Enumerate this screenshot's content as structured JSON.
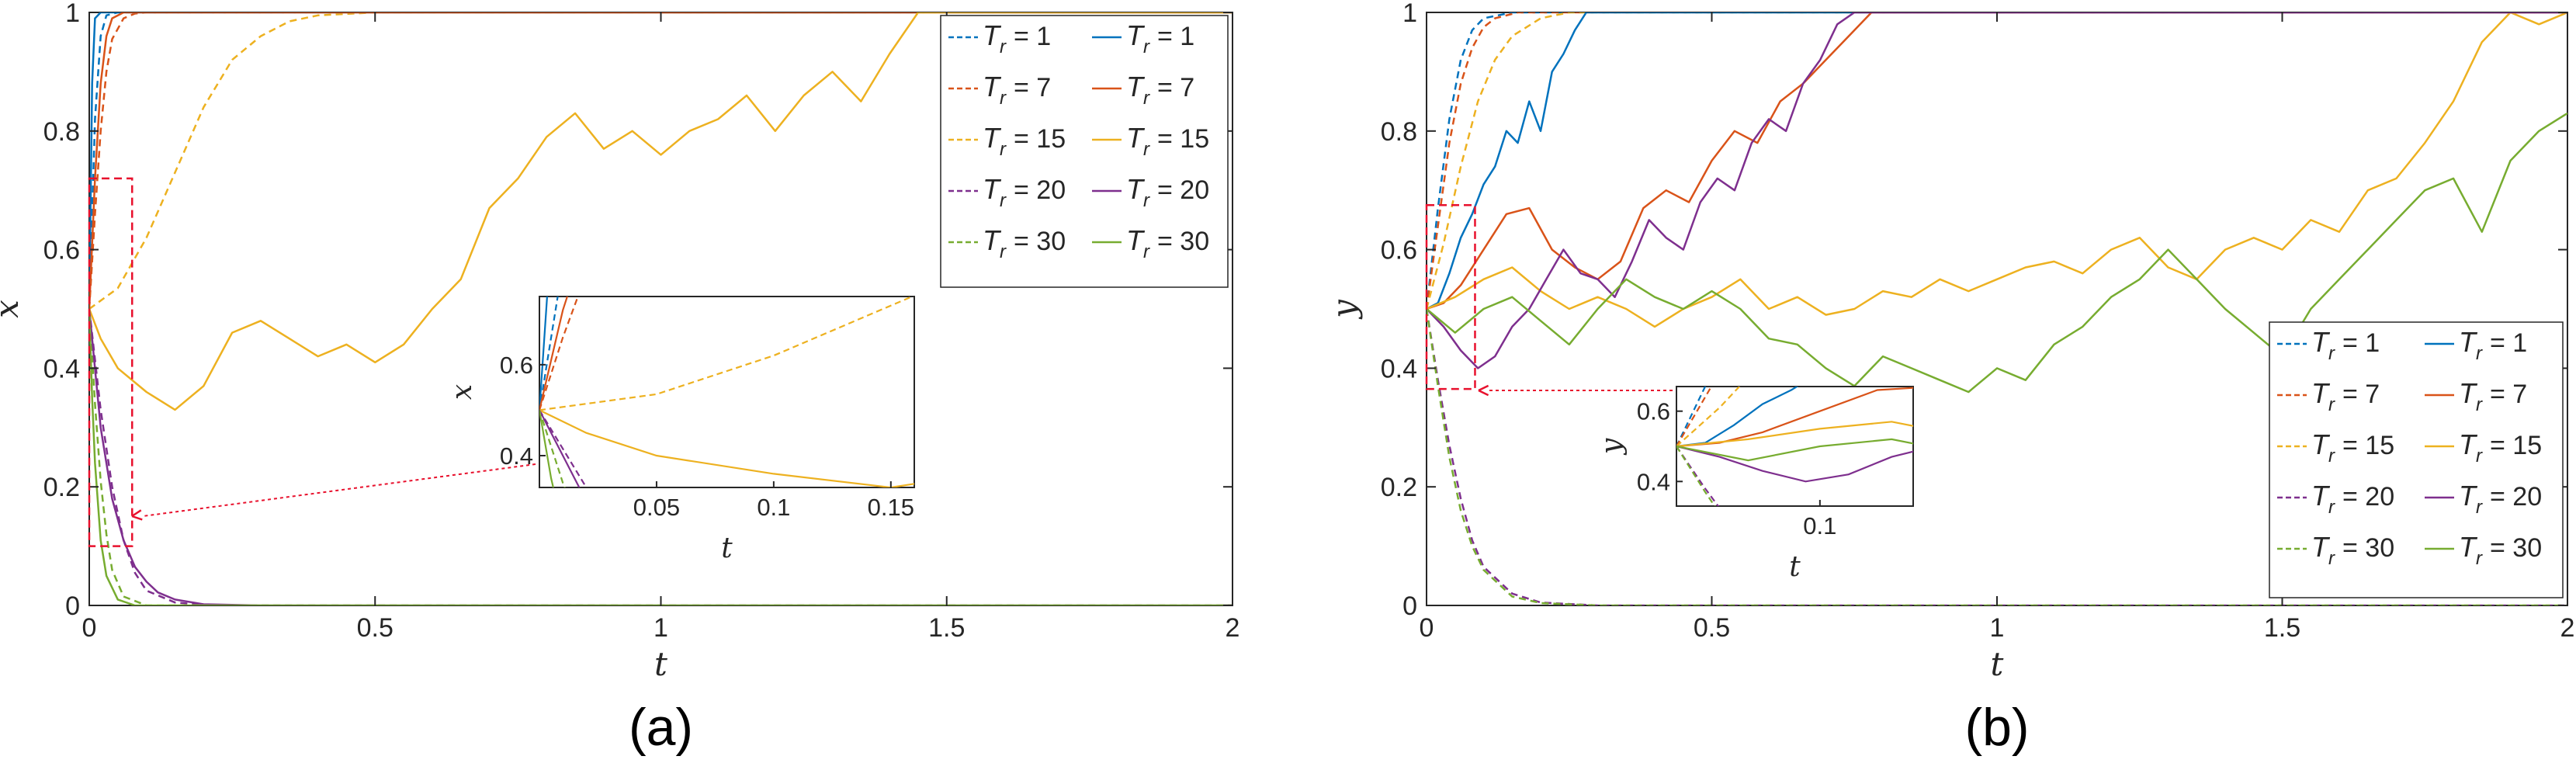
{
  "colors": {
    "1": "#0072BD",
    "7": "#D95319",
    "15": "#EDB120",
    "20": "#7E2F8E",
    "30": "#77AC30",
    "marker": "#E8112D",
    "axis": "#262626"
  },
  "chart_data": [
    {
      "type": "line",
      "panel_label": "(a)",
      "xlabel": "t",
      "ylabel": "x",
      "xlim": [
        0,
        2
      ],
      "ylim": [
        0,
        1
      ],
      "xticks": [
        "0",
        "0.5",
        "1",
        "1.5",
        "2"
      ],
      "yticks": [
        "0",
        "0.2",
        "0.4",
        "0.6",
        "0.8",
        "1"
      ],
      "legend": {
        "position": "top-right",
        "T_symbol": "T",
        "T_sub": "r",
        "entries": [
          {
            "style": "dashed",
            "Tr": "1",
            "label": "= 1"
          },
          {
            "style": "solid",
            "Tr": "1",
            "label": "= 1"
          },
          {
            "style": "dashed",
            "Tr": "7",
            "label": "= 7"
          },
          {
            "style": "solid",
            "Tr": "7",
            "label": "= 7"
          },
          {
            "style": "dashed",
            "Tr": "15",
            "label": "= 15"
          },
          {
            "style": "solid",
            "Tr": "15",
            "label": "= 15"
          },
          {
            "style": "dashed",
            "Tr": "20",
            "label": "= 20"
          },
          {
            "style": "solid",
            "Tr": "20",
            "label": "= 20"
          },
          {
            "style": "dashed",
            "Tr": "30",
            "label": "= 30"
          },
          {
            "style": "solid",
            "Tr": "30",
            "label": "= 30"
          }
        ]
      },
      "series": [
        {
          "Tr": "1",
          "style": "dashed",
          "x": [
            0,
            0.01,
            0.02,
            0.03,
            0.05,
            2
          ],
          "y": [
            0.5,
            0.82,
            0.96,
            0.995,
            1,
            1
          ]
        },
        {
          "Tr": "7",
          "style": "dashed",
          "x": [
            0,
            0.01,
            0.02,
            0.03,
            0.04,
            0.06,
            0.08,
            0.1,
            2
          ],
          "y": [
            0.5,
            0.66,
            0.8,
            0.9,
            0.955,
            0.99,
            0.998,
            1,
            1
          ]
        },
        {
          "Tr": "15",
          "style": "dashed",
          "x": [
            0,
            0.05,
            0.1,
            0.15,
            0.2,
            0.25,
            0.3,
            0.35,
            0.4,
            0.5,
            2
          ],
          "y": [
            0.5,
            0.535,
            0.62,
            0.73,
            0.84,
            0.92,
            0.96,
            0.985,
            0.995,
            1,
            1
          ]
        },
        {
          "Tr": "20",
          "style": "dashed",
          "x": [
            0,
            0.02,
            0.04,
            0.06,
            0.08,
            0.1,
            0.15,
            0.2,
            0.3,
            2
          ],
          "y": [
            0.5,
            0.33,
            0.2,
            0.11,
            0.055,
            0.025,
            0.005,
            0.001,
            0,
            0
          ]
        },
        {
          "Tr": "30",
          "style": "dashed",
          "x": [
            0,
            0.01,
            0.02,
            0.03,
            0.04,
            0.06,
            0.1,
            2
          ],
          "y": [
            0.5,
            0.34,
            0.21,
            0.12,
            0.06,
            0.015,
            0,
            0
          ]
        },
        {
          "Tr": "1",
          "style": "solid",
          "x": [
            0,
            0.005,
            0.01,
            0.02,
            2
          ],
          "y": [
            0.5,
            0.88,
            0.99,
            1,
            1
          ]
        },
        {
          "Tr": "7",
          "style": "solid",
          "x": [
            0,
            0.01,
            0.02,
            0.03,
            0.04,
            0.06,
            2
          ],
          "y": [
            0.5,
            0.72,
            0.88,
            0.96,
            0.99,
            1,
            1
          ]
        },
        {
          "Tr": "15",
          "style": "solid",
          "x": [
            0,
            0.02,
            0.05,
            0.1,
            0.15,
            0.2,
            0.25,
            0.3,
            0.35,
            0.4,
            0.45,
            0.5,
            0.55,
            0.6,
            0.65,
            0.7,
            0.75,
            0.8,
            0.85,
            0.9,
            0.95,
            1.0,
            1.05,
            1.1,
            1.15,
            1.2,
            1.25,
            1.3,
            1.35,
            1.4,
            1.45,
            1.5,
            1.6,
            1.7,
            1.8,
            1.9,
            2.0
          ],
          "y": [
            0.5,
            0.45,
            0.4,
            0.36,
            0.33,
            0.37,
            0.46,
            0.48,
            0.45,
            0.42,
            0.44,
            0.41,
            0.44,
            0.5,
            0.55,
            0.67,
            0.72,
            0.79,
            0.83,
            0.77,
            0.8,
            0.76,
            0.8,
            0.82,
            0.86,
            0.8,
            0.86,
            0.9,
            0.85,
            0.93,
            1.0,
            1.0,
            1.0,
            1.0,
            1.0,
            1.0,
            1.0
          ]
        },
        {
          "Tr": "20",
          "style": "solid",
          "x": [
            0,
            0.02,
            0.04,
            0.06,
            0.08,
            0.1,
            0.12,
            0.15,
            0.2,
            0.3,
            2
          ],
          "y": [
            0.5,
            0.3,
            0.18,
            0.11,
            0.065,
            0.04,
            0.022,
            0.01,
            0.002,
            0,
            0
          ]
        },
        {
          "Tr": "30",
          "style": "solid",
          "x": [
            0,
            0.005,
            0.01,
            0.02,
            0.03,
            0.05,
            0.08,
            2
          ],
          "y": [
            0.5,
            0.35,
            0.24,
            0.11,
            0.05,
            0.01,
            0,
            0
          ]
        }
      ],
      "inset": {
        "xlabel": "t",
        "ylabel": "x",
        "xlim": [
          0,
          0.16
        ],
        "ylim": [
          0.33,
          0.75
        ],
        "xticks": [
          "0.05",
          "0.1",
          "0.15"
        ],
        "yticks": [
          "0.4",
          "0.6"
        ]
      },
      "zoom_box": {
        "xlim": [
          0,
          0.075
        ],
        "ylim": [
          0.1,
          0.72
        ]
      }
    },
    {
      "type": "line",
      "panel_label": "(b)",
      "xlabel": "t",
      "ylabel": "y",
      "xlim": [
        0,
        2
      ],
      "ylim": [
        0,
        1
      ],
      "xticks": [
        "0",
        "0.5",
        "1",
        "1.5",
        "2"
      ],
      "yticks": [
        "0",
        "0.2",
        "0.4",
        "0.6",
        "0.8",
        "1"
      ],
      "legend": {
        "position": "bottom-right",
        "T_symbol": "T",
        "T_sub": "r",
        "entries": [
          {
            "style": "dashed",
            "Tr": "1",
            "label": "= 1"
          },
          {
            "style": "solid",
            "Tr": "1",
            "label": "= 1"
          },
          {
            "style": "dashed",
            "Tr": "7",
            "label": "= 7"
          },
          {
            "style": "solid",
            "Tr": "7",
            "label": "= 7"
          },
          {
            "style": "dashed",
            "Tr": "15",
            "label": "= 15"
          },
          {
            "style": "solid",
            "Tr": "15",
            "label": "= 15"
          },
          {
            "style": "dashed",
            "Tr": "20",
            "label": "= 20"
          },
          {
            "style": "solid",
            "Tr": "20",
            "label": "= 20"
          },
          {
            "style": "dashed",
            "Tr": "30",
            "label": "= 30"
          },
          {
            "style": "solid",
            "Tr": "30",
            "label": "= 30"
          }
        ]
      },
      "series": [
        {
          "Tr": "1",
          "style": "dashed",
          "x": [
            0,
            0.02,
            0.04,
            0.06,
            0.08,
            0.1,
            0.15,
            2
          ],
          "y": [
            0.5,
            0.67,
            0.82,
            0.92,
            0.97,
            0.99,
            1,
            1
          ]
        },
        {
          "Tr": "7",
          "style": "dashed",
          "x": [
            0,
            0.02,
            0.04,
            0.06,
            0.08,
            0.1,
            0.12,
            0.16,
            2
          ],
          "y": [
            0.5,
            0.64,
            0.78,
            0.88,
            0.94,
            0.975,
            0.99,
            1,
            1
          ]
        },
        {
          "Tr": "15",
          "style": "dashed",
          "x": [
            0,
            0.03,
            0.06,
            0.09,
            0.12,
            0.15,
            0.2,
            0.25,
            2
          ],
          "y": [
            0.5,
            0.61,
            0.74,
            0.85,
            0.92,
            0.96,
            0.99,
            1,
            1
          ]
        },
        {
          "Tr": "20",
          "style": "dashed",
          "x": [
            0,
            0.02,
            0.04,
            0.06,
            0.08,
            0.1,
            0.15,
            0.2,
            0.3,
            2
          ],
          "y": [
            0.5,
            0.38,
            0.27,
            0.18,
            0.11,
            0.065,
            0.02,
            0.005,
            0,
            0
          ]
        },
        {
          "Tr": "30",
          "style": "dashed",
          "x": [
            0,
            0.02,
            0.04,
            0.06,
            0.08,
            0.1,
            0.15,
            0.2,
            0.3,
            2
          ],
          "y": [
            0.5,
            0.37,
            0.25,
            0.16,
            0.1,
            0.06,
            0.015,
            0.004,
            0,
            0
          ]
        },
        {
          "Tr": "1",
          "style": "solid",
          "x": [
            0,
            0.02,
            0.04,
            0.06,
            0.08,
            0.1,
            0.12,
            0.14,
            0.16,
            0.18,
            0.2,
            0.22,
            0.24,
            0.26,
            0.28,
            2
          ],
          "y": [
            0.5,
            0.51,
            0.56,
            0.62,
            0.66,
            0.71,
            0.74,
            0.8,
            0.78,
            0.85,
            0.8,
            0.9,
            0.93,
            0.97,
            1.0,
            1.0
          ]
        },
        {
          "Tr": "7",
          "style": "solid",
          "x": [
            0,
            0.03,
            0.06,
            0.1,
            0.14,
            0.18,
            0.22,
            0.26,
            0.3,
            0.34,
            0.38,
            0.42,
            0.46,
            0.5,
            0.54,
            0.58,
            0.62,
            0.66,
            0.7,
            0.74,
            0.78,
            0.8,
            2
          ],
          "y": [
            0.5,
            0.51,
            0.54,
            0.6,
            0.66,
            0.67,
            0.6,
            0.57,
            0.55,
            0.58,
            0.67,
            0.7,
            0.68,
            0.75,
            0.8,
            0.78,
            0.85,
            0.88,
            0.92,
            0.96,
            1.0,
            1.0,
            1.0
          ]
        },
        {
          "Tr": "15",
          "style": "solid",
          "x": [
            0,
            0.05,
            0.1,
            0.15,
            0.2,
            0.25,
            0.3,
            0.35,
            0.4,
            0.45,
            0.5,
            0.55,
            0.6,
            0.65,
            0.7,
            0.75,
            0.8,
            0.85,
            0.9,
            0.95,
            1.0,
            1.05,
            1.1,
            1.15,
            1.2,
            1.25,
            1.3,
            1.35,
            1.4,
            1.45,
            1.5,
            1.55,
            1.6,
            1.65,
            1.7,
            1.75,
            1.8,
            1.85,
            1.9,
            1.95,
            2.0
          ],
          "y": [
            0.5,
            0.52,
            0.55,
            0.57,
            0.53,
            0.5,
            0.52,
            0.5,
            0.47,
            0.5,
            0.52,
            0.55,
            0.5,
            0.52,
            0.49,
            0.5,
            0.53,
            0.52,
            0.55,
            0.53,
            0.55,
            0.57,
            0.58,
            0.56,
            0.6,
            0.62,
            0.57,
            0.55,
            0.6,
            0.62,
            0.6,
            0.65,
            0.63,
            0.7,
            0.72,
            0.78,
            0.85,
            0.95,
            1.0,
            0.98,
            1.0
          ]
        },
        {
          "Tr": "20",
          "style": "solid",
          "x": [
            0,
            0.03,
            0.06,
            0.09,
            0.12,
            0.15,
            0.18,
            0.21,
            0.24,
            0.27,
            0.3,
            0.33,
            0.36,
            0.39,
            0.42,
            0.45,
            0.48,
            0.51,
            0.54,
            0.57,
            0.6,
            0.63,
            0.66,
            0.69,
            0.72,
            0.75,
            2
          ],
          "y": [
            0.5,
            0.47,
            0.43,
            0.4,
            0.42,
            0.47,
            0.5,
            0.55,
            0.6,
            0.56,
            0.55,
            0.52,
            0.58,
            0.65,
            0.62,
            0.6,
            0.68,
            0.72,
            0.7,
            0.78,
            0.82,
            0.8,
            0.88,
            0.92,
            0.98,
            1.0,
            1.0
          ]
        },
        {
          "Tr": "30",
          "style": "solid",
          "x": [
            0,
            0.05,
            0.1,
            0.15,
            0.2,
            0.25,
            0.3,
            0.35,
            0.4,
            0.45,
            0.5,
            0.55,
            0.6,
            0.65,
            0.7,
            0.75,
            0.8,
            0.85,
            0.9,
            0.95,
            1.0,
            1.05,
            1.1,
            1.15,
            1.2,
            1.25,
            1.3,
            1.35,
            1.4,
            1.45,
            1.5,
            1.55,
            1.6,
            1.65,
            1.7,
            1.75,
            1.8,
            1.85,
            1.9,
            1.95,
            2.0
          ],
          "y": [
            0.5,
            0.46,
            0.5,
            0.52,
            0.48,
            0.44,
            0.5,
            0.55,
            0.52,
            0.5,
            0.53,
            0.5,
            0.45,
            0.44,
            0.4,
            0.37,
            0.42,
            0.4,
            0.38,
            0.36,
            0.4,
            0.38,
            0.44,
            0.47,
            0.52,
            0.55,
            0.6,
            0.55,
            0.5,
            0.46,
            0.42,
            0.5,
            0.55,
            0.6,
            0.65,
            0.7,
            0.72,
            0.63,
            0.75,
            0.8,
            0.83
          ]
        }
      ],
      "inset": {
        "xlabel": "t",
        "ylabel": "y",
        "xlim": [
          0,
          0.165
        ],
        "ylim": [
          0.33,
          0.67
        ],
        "xticks": [
          "0.1"
        ],
        "yticks": [
          "0.4",
          "0.6"
        ]
      },
      "zoom_box": {
        "xlim": [
          0,
          0.085
        ],
        "ylim": [
          0.365,
          0.675
        ]
      }
    }
  ]
}
